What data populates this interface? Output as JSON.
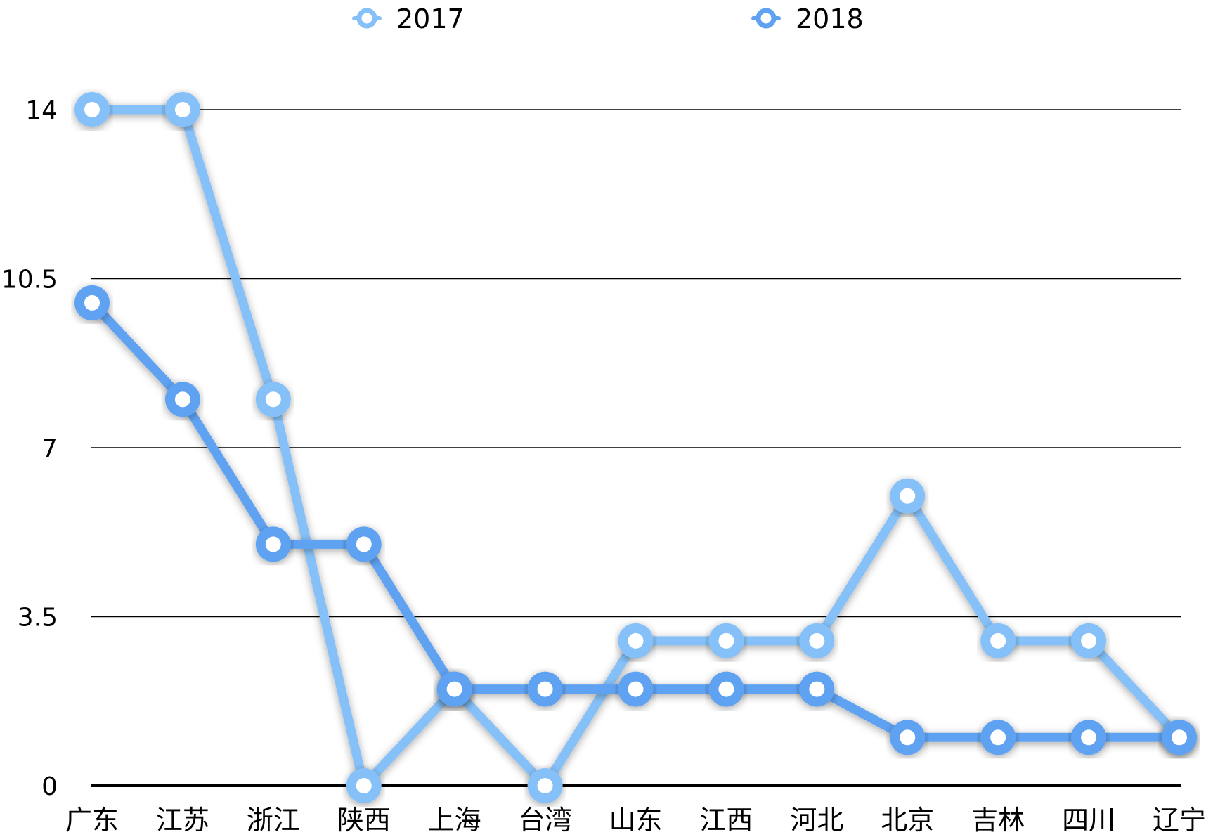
{
  "chart_data": {
    "type": "line",
    "categories": [
      "广东",
      "江苏",
      "浙江",
      "陕西",
      "上海",
      "台湾",
      "山东",
      "江西",
      "河北",
      "北京",
      "吉林",
      "四川",
      "辽宁"
    ],
    "series": [
      {
        "name": "2017",
        "color": "#85C1F8",
        "values": [
          14,
          14,
          8,
          0,
          2,
          0,
          3,
          3,
          3,
          6,
          3,
          3,
          1
        ]
      },
      {
        "name": "2018",
        "color": "#5FA2F2",
        "values": [
          10,
          8,
          5,
          5,
          2,
          2,
          2,
          2,
          2,
          1,
          1,
          1,
          1
        ]
      }
    ],
    "yticks": [
      "0",
      "3.5",
      "7",
      "10.5",
      "14"
    ],
    "ylim": [
      0,
      14
    ],
    "grid": true,
    "legend_position": "top"
  }
}
